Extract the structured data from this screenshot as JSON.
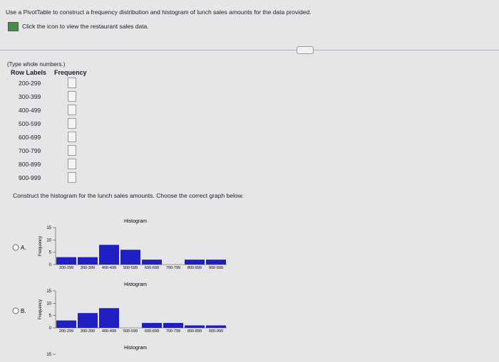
{
  "question": "Use a PivotTable to construct a frequency distribution and histogram of lunch sales amounts for the data provided.",
  "data_link": "Click the icon to view the restaurant sales data.",
  "instruction": "(Type whole numbers.)",
  "table": {
    "headers": [
      "Row Labels",
      "Frequency"
    ],
    "rows": [
      "200-299",
      "300-399",
      "400-499",
      "500-599",
      "600-699",
      "700-799",
      "800-899",
      "900-999"
    ]
  },
  "prompt": "Construct the histogram for the lunch sales amounts. Choose the correct graph below.",
  "options": [
    {
      "label": "A.",
      "title": "Histogram",
      "y_label": "Frequency",
      "categories": [
        "200-299",
        "300-399",
        "400-499",
        "500-599",
        "600-699",
        "700-799",
        "800-899",
        "900-999"
      ],
      "values": [
        3,
        3,
        8,
        6,
        2,
        0,
        2,
        2
      ],
      "color": "#1f1fc4",
      "ylim": [
        0,
        15
      ],
      "yticks": [
        0,
        5,
        10,
        15
      ]
    },
    {
      "label": "B.",
      "title": "Histogram",
      "y_label": "Frequency",
      "categories": [
        "200-299",
        "300-399",
        "400-499",
        "500-599",
        "600-699",
        "700-799",
        "800-899",
        "900-999"
      ],
      "values": [
        3,
        6,
        8,
        0,
        2,
        2,
        1,
        1
      ],
      "color": "#1f1fc4",
      "ylim": [
        0,
        15
      ],
      "yticks": [
        0,
        5,
        10,
        15
      ]
    },
    {
      "title": "Histogram",
      "yticks": [
        15
      ]
    }
  ]
}
